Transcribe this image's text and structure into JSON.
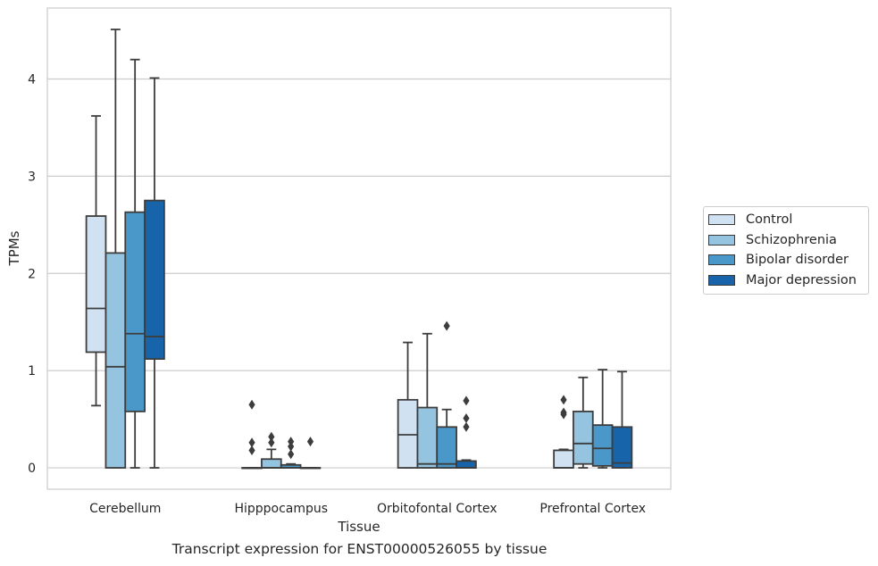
{
  "chart_data": {
    "type": "box",
    "title": "",
    "caption": "Transcript expression for ENST00000526055 by tissue",
    "xlabel": "Tissue",
    "ylabel": "TPMs",
    "ylim": [
      -0.22,
      4.73
    ],
    "yticks": [
      0,
      1,
      2,
      3,
      4
    ],
    "grid": "horizontal",
    "legend_position": "right",
    "categories": [
      "Cerebellum",
      "Hipppocampus",
      "Orbitofontal Cortex",
      "Prefrontal Cortex"
    ],
    "series": [
      {
        "name": "Control",
        "color": "#d0e1f2",
        "boxes": [
          {
            "whisker_low": 0.64,
            "q1": 1.19,
            "median": 1.64,
            "q3": 2.59,
            "whisker_high": 3.62,
            "outliers": []
          },
          {
            "whisker_low": 0.0,
            "q1": 0.0,
            "median": 0.0,
            "q3": 0.0,
            "whisker_high": 0.0,
            "outliers": [
              0.65,
              0.26,
              0.18
            ]
          },
          {
            "whisker_low": 0.0,
            "q1": 0.0,
            "median": 0.34,
            "q3": 0.7,
            "whisker_high": 1.29,
            "outliers": []
          },
          {
            "whisker_low": 0.0,
            "q1": 0.0,
            "median": 0.0,
            "q3": 0.18,
            "whisker_high": 0.19,
            "outliers": [
              0.7,
              0.57,
              0.55
            ]
          }
        ]
      },
      {
        "name": "Schizophrenia",
        "color": "#94c4df",
        "boxes": [
          {
            "whisker_low": 0.0,
            "q1": 0.0,
            "median": 1.04,
            "q3": 2.21,
            "whisker_high": 4.51,
            "outliers": []
          },
          {
            "whisker_low": 0.0,
            "q1": 0.0,
            "median": 0.0,
            "q3": 0.09,
            "whisker_high": 0.19,
            "outliers": [
              0.32,
              0.26
            ]
          },
          {
            "whisker_low": 0.0,
            "q1": 0.0,
            "median": 0.04,
            "q3": 0.62,
            "whisker_high": 1.38,
            "outliers": []
          },
          {
            "whisker_low": 0.0,
            "q1": 0.04,
            "median": 0.25,
            "q3": 0.58,
            "whisker_high": 0.93,
            "outliers": []
          }
        ]
      },
      {
        "name": "Bipolar disorder",
        "color": "#4a98c9",
        "boxes": [
          {
            "whisker_low": 0.0,
            "q1": 0.58,
            "median": 1.38,
            "q3": 2.63,
            "whisker_high": 4.2,
            "outliers": []
          },
          {
            "whisker_low": 0.0,
            "q1": 0.0,
            "median": 0.0,
            "q3": 0.03,
            "whisker_high": 0.04,
            "outliers": [
              0.27,
              0.22,
              0.14
            ]
          },
          {
            "whisker_low": 0.0,
            "q1": 0.0,
            "median": 0.04,
            "q3": 0.42,
            "whisker_high": 0.6,
            "outliers": [
              1.46
            ]
          },
          {
            "whisker_low": 0.0,
            "q1": 0.02,
            "median": 0.2,
            "q3": 0.44,
            "whisker_high": 1.01,
            "outliers": []
          }
        ]
      },
      {
        "name": "Major depression",
        "color": "#1764ab",
        "boxes": [
          {
            "whisker_low": 0.0,
            "q1": 1.12,
            "median": 1.35,
            "q3": 2.75,
            "whisker_high": 4.01,
            "outliers": []
          },
          {
            "whisker_low": 0.0,
            "q1": 0.0,
            "median": 0.0,
            "q3": 0.0,
            "whisker_high": 0.0,
            "outliers": [
              0.27
            ]
          },
          {
            "whisker_low": 0.0,
            "q1": 0.0,
            "median": 0.0,
            "q3": 0.07,
            "whisker_high": 0.08,
            "outliers": [
              0.69,
              0.51,
              0.42
            ]
          },
          {
            "whisker_low": 0.0,
            "q1": 0.0,
            "median": 0.05,
            "q3": 0.42,
            "whisker_high": 0.99,
            "outliers": []
          }
        ]
      }
    ]
  }
}
